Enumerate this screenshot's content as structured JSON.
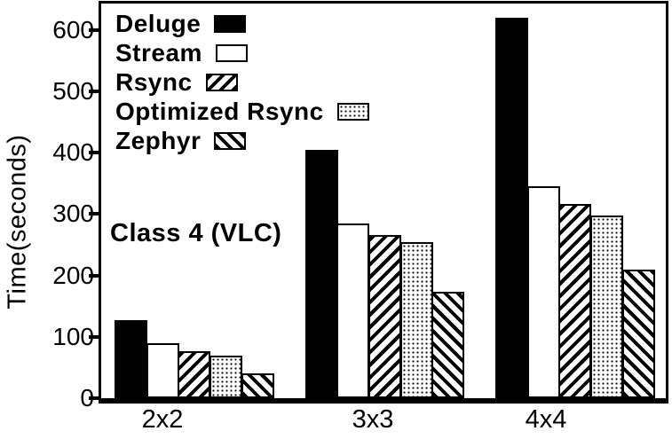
{
  "chart_data": {
    "type": "bar",
    "title": "",
    "xlabel": "",
    "ylabel": "Time(seconds)",
    "annotation": "Class 4 (VLC)",
    "categories": [
      "2x2",
      "3x3",
      "4x4"
    ],
    "yticks": [
      0,
      100,
      200,
      300,
      400,
      500,
      600
    ],
    "ylim": [
      0,
      643
    ],
    "grid": false,
    "legend_position": "top-left-inside",
    "series": [
      {
        "name": "Deluge",
        "pattern": "solid-black",
        "values": [
          127,
          404,
          620
        ]
      },
      {
        "name": "Stream",
        "pattern": "white",
        "values": [
          89,
          285,
          346
        ]
      },
      {
        "name": "Rsync",
        "pattern": "diagonal-forward-hatch",
        "values": [
          76,
          266,
          317
        ]
      },
      {
        "name": "Optimized Rsync",
        "pattern": "dots",
        "values": [
          70,
          255,
          297
        ]
      },
      {
        "name": "Zephyr",
        "pattern": "diagonal-back-hatch",
        "values": [
          41,
          173,
          210
        ]
      }
    ],
    "colors": {
      "foreground": "#000000",
      "background": "#ffffff"
    }
  }
}
